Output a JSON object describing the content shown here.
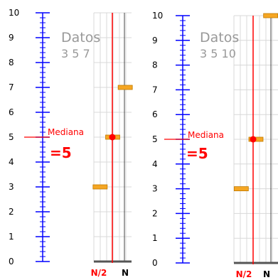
{
  "panels": [
    {
      "id": "left",
      "datos_label": "Datos",
      "datos_values_text": "3 5 7",
      "data_values": [
        3,
        5,
        7
      ],
      "median_value": 5,
      "mediana_label": "Mediana",
      "result_text": "=5",
      "axis_ticks": [
        "0",
        "1",
        "2",
        "3",
        "4",
        "5",
        "6",
        "7",
        "8",
        "9",
        "10"
      ],
      "n_half_label": "N/2",
      "n_label": "N"
    },
    {
      "id": "right",
      "datos_label": "Datos",
      "datos_values_text": "3 5 10",
      "data_values": [
        3,
        5,
        10
      ],
      "median_value": 5,
      "mediana_label": "Mediana",
      "result_text": "=5",
      "axis_ticks": [
        "0",
        "1",
        "2",
        "3",
        "4",
        "5",
        "6",
        "7",
        "8",
        "9",
        "10"
      ],
      "n_half_label": "N/2",
      "n_label": "N"
    }
  ],
  "colors": {
    "axis": "#0000ff",
    "median": "#ff0000",
    "datos_text": "#999999",
    "bar_fill": "#f5a623",
    "bar_edge": "#c07a00",
    "grid": "#d8d8d8",
    "bottom_axis": "#555555",
    "tick_text": "#000000"
  }
}
